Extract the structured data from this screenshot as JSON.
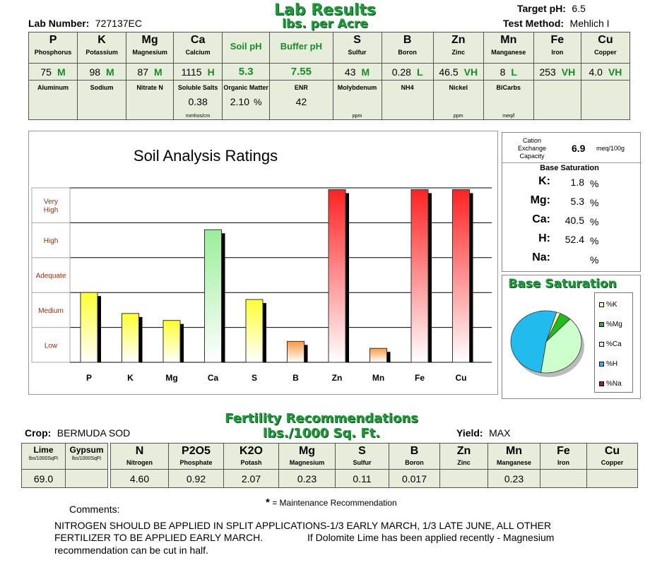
{
  "header": {
    "title": "Lab Results",
    "subtitle": "lbs. per Acre",
    "lab_number_label": "Lab Number:",
    "lab_number": "727137EC",
    "target_ph_label": "Target pH:",
    "target_ph": "6.5",
    "test_method_label": "Test Method:",
    "test_method": "Mehlich I"
  },
  "nutrients": [
    {
      "sym": "P",
      "name": "Phosphorus",
      "value": "75",
      "rating": "M"
    },
    {
      "sym": "K",
      "name": "Potassium",
      "value": "98",
      "rating": "M"
    },
    {
      "sym": "Mg",
      "name": "Magnesium",
      "value": "87",
      "rating": "M"
    },
    {
      "sym": "Ca",
      "name": "Calcium",
      "value": "1115",
      "rating": "H"
    },
    {
      "sym": "Soil pH",
      "name": "",
      "value": "5.3",
      "rating": ""
    },
    {
      "sym": "Buffer pH",
      "name": "",
      "value": "7.55",
      "rating": ""
    },
    {
      "sym": "S",
      "name": "Sulfur",
      "value": "43",
      "rating": "M"
    },
    {
      "sym": "B",
      "name": "Boron",
      "value": "0.28",
      "rating": "L"
    },
    {
      "sym": "Zn",
      "name": "Zinc",
      "value": "46.5",
      "rating": "VH"
    },
    {
      "sym": "Mn",
      "name": "Manganese",
      "value": "8",
      "rating": "L"
    },
    {
      "sym": "Fe",
      "name": "Iron",
      "value": "253",
      "rating": "VH"
    },
    {
      "sym": "Cu",
      "name": "Copper",
      "value": "4.0",
      "rating": "VH"
    }
  ],
  "extras": [
    {
      "name": "Aluminum",
      "value": "",
      "unit": ""
    },
    {
      "name": "Sodium",
      "value": "",
      "unit": ""
    },
    {
      "name": "Nitrate N",
      "value": "",
      "unit": ""
    },
    {
      "name": "Soluble Salts",
      "value": "0.38",
      "unit": "mmhos/cm"
    },
    {
      "name": "Organic Matter",
      "value": "2.10",
      "unit": "%"
    },
    {
      "name": "ENR",
      "value": "42",
      "unit": ""
    },
    {
      "name": "Molybdenum",
      "value": "",
      "unit": "ppm"
    },
    {
      "name": "NH4",
      "value": "",
      "unit": ""
    },
    {
      "name": "Nickel",
      "value": "",
      "unit": "ppm"
    },
    {
      "name": "BiCarbs",
      "value": "",
      "unit": "meq/l"
    },
    {
      "name": "",
      "value": "",
      "unit": ""
    },
    {
      "name": "",
      "value": "",
      "unit": ""
    }
  ],
  "chart_data": {
    "type": "bar",
    "title": "Soil Analysis Ratings",
    "rating_levels": [
      "Low",
      "Medium",
      "Adequate",
      "High",
      "Very High"
    ],
    "categories": [
      "P",
      "K",
      "Mg",
      "Ca",
      "S",
      "B",
      "Zn",
      "Mn",
      "Fe",
      "Cu"
    ],
    "values": [
      2.0,
      1.4,
      1.2,
      3.8,
      1.8,
      0.6,
      4.95,
      0.4,
      4.95,
      4.95
    ],
    "ylim": [
      0,
      5
    ],
    "bar_colors": [
      "yellow",
      "yellow",
      "yellow",
      "green",
      "yellow",
      "orange",
      "red",
      "orange",
      "red",
      "red"
    ]
  },
  "cec": {
    "label": "Cation Exchange Capacity",
    "value": "6.9",
    "unit": "meq/100g"
  },
  "base_saturation": {
    "header": "Base Saturation",
    "rows": [
      {
        "label": "K:",
        "value": "1.8",
        "unit": "%"
      },
      {
        "label": "Mg:",
        "value": "5.3",
        "unit": "%"
      },
      {
        "label": "Ca:",
        "value": "40.5",
        "unit": "%"
      },
      {
        "label": "H:",
        "value": "52.4",
        "unit": "%"
      },
      {
        "label": "Na:",
        "value": "",
        "unit": "%"
      }
    ]
  },
  "pie": {
    "title": "Base Saturation",
    "slices": [
      {
        "label": "%K",
        "value": 1.8,
        "color": "#ffff99"
      },
      {
        "label": "%Mg",
        "value": 5.3,
        "color": "#22bb22"
      },
      {
        "label": "%Ca",
        "value": 40.5,
        "color": "#ccffcc"
      },
      {
        "label": "%H",
        "value": 52.4,
        "color": "#22bbee"
      },
      {
        "label": "%Na",
        "value": 0,
        "color": "#992222"
      }
    ]
  },
  "recommendations": {
    "title": "Fertility Recommendations",
    "subtitle": "lbs./1000 Sq. Ft.",
    "crop_label": "Crop:",
    "crop": "BERMUDA SOD",
    "yield_label": "Yield:",
    "yield": "MAX",
    "lime": {
      "sym": "Lime",
      "unit": "lbs/1000SqFt",
      "value": "69.0"
    },
    "gypsum": {
      "sym": "Gypsum",
      "unit": "lbs/1000SqFt",
      "value": ""
    },
    "items": [
      {
        "sym": "N",
        "name": "Nitrogen",
        "value": "4.60"
      },
      {
        "sym": "P2O5",
        "name": "Phosphate",
        "value": "0.92"
      },
      {
        "sym": "K2O",
        "name": "Potash",
        "value": "2.07"
      },
      {
        "sym": "Mg",
        "name": "Magnesium",
        "value": "0.23"
      },
      {
        "sym": "S",
        "name": "Sulfur",
        "value": "0.11"
      },
      {
        "sym": "B",
        "name": "Boron",
        "value": "0.017"
      },
      {
        "sym": "Zn",
        "name": "Zinc",
        "value": ""
      },
      {
        "sym": "Mn",
        "name": "Manganese",
        "value": "0.23"
      },
      {
        "sym": "Fe",
        "name": "Iron",
        "value": ""
      },
      {
        "sym": "Cu",
        "name": "Copper",
        "value": ""
      }
    ],
    "maintenance_star": "*",
    "maintenance_note": "= Maintenance Recommendation"
  },
  "comments": {
    "label": "Comments:",
    "text1": "NITROGEN SHOULD BE APPLIED IN SPLIT APPLICATIONS-1/3 EARLY MARCH, 1/3 LATE JUNE, ALL OTHER",
    "text2a": "FERTILIZER TO BE APPLIED EARLY MARCH.",
    "text2b": "If Dolomite Lime has been applied recently - Magnesium",
    "text3": "recommendation can be cut in half."
  }
}
